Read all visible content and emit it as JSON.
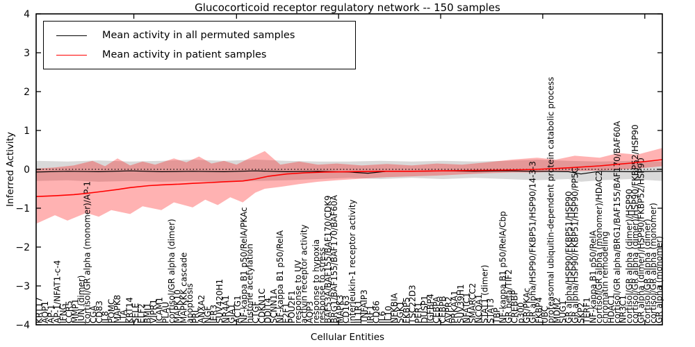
{
  "title": "Glucocorticoid receptor regulatory network -- 150 samples",
  "axes": {
    "ylabel": "Inferred Activity",
    "xlabel": "Cellular Entities",
    "ylim": [
      -4,
      4
    ],
    "yticks": [
      -4,
      -3,
      -2,
      -1,
      0,
      1,
      2,
      3,
      4
    ]
  },
  "legend": {
    "items": [
      {
        "label": "Mean activity in all permuted samples",
        "color": "#000000"
      },
      {
        "label": "Mean activity in patient samples",
        "color": "#ff0000"
      }
    ]
  },
  "chart_data": {
    "type": "line",
    "title": "Glucocorticoid receptor regulatory network -- 150 samples",
    "xlabel": "Cellular Entities",
    "ylabel": "Inferred Activity",
    "ylim": [
      -4,
      4
    ],
    "grid": false,
    "legend_position": "upper left",
    "zero_line": true,
    "x_categories": [
      "KRT17",
      "AQP1",
      "AP-1",
      "AP-1/NFAT1-c-4",
      "IFNG",
      "CCR5",
      "MMP1",
      "JUN (dimer)",
      "cortisol/GR alpha (monomer)/AP-1",
      "CGA",
      "CD83",
      "IL8",
      "POMC",
      "MAPK8",
      "LTA",
      "KRT14",
      "SELE",
      "ELF2",
      "BMI1",
      "VIPR1",
      "ICAM1",
      "PLAU",
      "cortisol/GR alpha (dimer)",
      "MAPK10",
      "MAPKKK cascade",
      "apoptosis",
      "PRL",
      "ANXA2",
      "NGF",
      "IER3",
      "SUV420H1",
      "NR4A1",
      "GJA1",
      "ACTG1",
      "NF-kappa B1 p50/RelA/PKAc",
      "histone acetylation",
      "CTGF",
      "CDKN1C",
      "DDIT4",
      "SCNN1A",
      "NF-kappa B1 p50/RelA",
      "E2F1",
      "POU2F1",
      "response to UV",
      "activin receptor activity",
      "AQP3",
      "response to hypoxia",
      "response to stress",
      "BAF53A/BAF155/BAF170/CDK9",
      "BRG1/BAF155/BAF170/BAF60A",
      "MAPK3",
      "CD163",
      "interleukin-1 receptor activity",
      "IL1R1",
      "TNFAIP3",
      "IRF1",
      "CD86",
      "IL6",
      "IL10",
      "NFKBIA",
      "SGK1",
      "FKBP5",
      "TSC22D3",
      "PER1",
      "DUSP1",
      "IGFBP4",
      "CEBPA",
      "CEBPB",
      "AVPR2",
      "PRKAA1",
      "SUV39H1",
      "NFATC1",
      "SMARCC2",
      "NCOA1",
      "STAT1 (dimer)",
      "STAT3",
      "TBP",
      "NF-kappa B1 p50/RelA/Cbp",
      "GR beta/TIF2",
      "CREBBP",
      "p300",
      "GR/PKAc",
      "GR alpha/HSP90/FKBP51/HSP90/14-3-3",
      "FKBP4",
      "UBC",
      "proteasomal ubiquitin-dependent protein catabolic process",
      "MDM2",
      "SUG1",
      "GR alpha/HSP90/FKBP51/HSP90",
      "GR alpha/HSP90/FKBP51/HSP90/PP5C",
      "SKP2",
      "TERF1",
      "NF-kappa B1 p50/RelA",
      "cortisol/GR alpha (monomer)/HDAC2",
      "chromatin remodeling",
      "HDAC1",
      "cortisol/GR alpha/BRG1/BAF155/BAF170/BAF60A",
      "NR3C1",
      "cortisol/GR alpha (dimer)/HSP90",
      "cortisol/GR alpha (dimer)/HSP90/FKBP52/HSP90",
      "GR alpha (dimer)/HSP90/FKBP52/HSP90",
      "cortisol/GR alpha (dimer)",
      "cortisol/GR alpha (monomer)",
      "GR alpha (monomer)"
    ],
    "series": [
      {
        "name": "Mean activity in all permuted samples",
        "color": "#000000",
        "line_width": 1.2,
        "mean": [
          [
            0,
            -0.07
          ],
          [
            0.05,
            -0.05
          ],
          [
            0.1,
            -0.06
          ],
          [
            0.15,
            -0.04
          ],
          [
            0.2,
            -0.06
          ],
          [
            0.25,
            -0.05
          ],
          [
            0.3,
            -0.06
          ],
          [
            0.35,
            -0.04
          ],
          [
            0.4,
            -0.06
          ],
          [
            0.45,
            -0.05
          ],
          [
            0.5,
            -0.07
          ],
          [
            0.53,
            -0.1
          ],
          [
            0.56,
            -0.05
          ],
          [
            0.6,
            -0.05
          ],
          [
            0.65,
            -0.04
          ],
          [
            0.7,
            -0.05
          ],
          [
            0.75,
            -0.04
          ],
          [
            0.8,
            -0.05
          ],
          [
            0.85,
            -0.06
          ],
          [
            0.87,
            -0.12
          ],
          [
            0.9,
            -0.05
          ],
          [
            0.95,
            -0.06
          ],
          [
            1,
            -0.05
          ]
        ],
        "band": {
          "fill": "#aaaaaa",
          "opacity": 0.45,
          "upper": [
            [
              0,
              0.22
            ],
            [
              0.05,
              0.2
            ],
            [
              0.1,
              0.23
            ],
            [
              0.15,
              0.2
            ],
            [
              0.2,
              0.22
            ],
            [
              0.25,
              0.25
            ],
            [
              0.3,
              0.22
            ],
            [
              0.35,
              0.25
            ],
            [
              0.4,
              0.22
            ],
            [
              0.45,
              0.2
            ],
            [
              0.5,
              0.2
            ],
            [
              0.55,
              0.22
            ],
            [
              0.6,
              0.2
            ],
            [
              0.65,
              0.22
            ],
            [
              0.7,
              0.2
            ],
            [
              0.75,
              0.22
            ],
            [
              0.8,
              0.25
            ],
            [
              0.85,
              0.22
            ],
            [
              0.9,
              0.2
            ],
            [
              0.95,
              0.22
            ],
            [
              1,
              0.2
            ]
          ],
          "lower": [
            [
              0,
              -0.3
            ],
            [
              0.05,
              -0.28
            ],
            [
              0.1,
              -0.32
            ],
            [
              0.15,
              -0.3
            ],
            [
              0.2,
              -0.32
            ],
            [
              0.25,
              -0.3
            ],
            [
              0.3,
              -0.33
            ],
            [
              0.35,
              -0.3
            ],
            [
              0.4,
              -0.28
            ],
            [
              0.45,
              -0.25
            ],
            [
              0.5,
              -0.22
            ],
            [
              0.55,
              -0.25
            ],
            [
              0.6,
              -0.22
            ],
            [
              0.65,
              -0.25
            ],
            [
              0.7,
              -0.22
            ],
            [
              0.75,
              -0.25
            ],
            [
              0.8,
              -0.28
            ],
            [
              0.85,
              -0.25
            ],
            [
              0.87,
              -0.32
            ],
            [
              0.9,
              -0.28
            ],
            [
              0.95,
              -0.25
            ],
            [
              1,
              -0.3
            ]
          ]
        }
      },
      {
        "name": "Mean activity in patient samples",
        "color": "#ff0000",
        "line_width": 1.6,
        "mean": [
          [
            0,
            -0.7
          ],
          [
            0.03,
            -0.68
          ],
          [
            0.06,
            -0.65
          ],
          [
            0.08,
            -0.62
          ],
          [
            0.1,
            -0.58
          ],
          [
            0.13,
            -0.52
          ],
          [
            0.15,
            -0.47
          ],
          [
            0.18,
            -0.42
          ],
          [
            0.2,
            -0.4
          ],
          [
            0.23,
            -0.38
          ],
          [
            0.25,
            -0.36
          ],
          [
            0.28,
            -0.34
          ],
          [
            0.3,
            -0.32
          ],
          [
            0.33,
            -0.3
          ],
          [
            0.35,
            -0.25
          ],
          [
            0.37,
            -0.18
          ],
          [
            0.4,
            -0.12
          ],
          [
            0.43,
            -0.09
          ],
          [
            0.46,
            -0.07
          ],
          [
            0.5,
            -0.06
          ],
          [
            0.55,
            -0.05
          ],
          [
            0.6,
            -0.05
          ],
          [
            0.65,
            -0.04
          ],
          [
            0.7,
            -0.03
          ],
          [
            0.75,
            -0.02
          ],
          [
            0.8,
            0.0
          ],
          [
            0.85,
            0.04
          ],
          [
            0.9,
            0.09
          ],
          [
            0.95,
            0.16
          ],
          [
            1,
            0.25
          ]
        ],
        "band": {
          "fill": "#ff0000",
          "opacity": 0.3,
          "upper": [
            [
              0,
              0.02
            ],
            [
              0.03,
              0.05
            ],
            [
              0.06,
              0.1
            ],
            [
              0.09,
              0.22
            ],
            [
              0.11,
              0.08
            ],
            [
              0.13,
              0.28
            ],
            [
              0.15,
              0.1
            ],
            [
              0.17,
              0.2
            ],
            [
              0.19,
              0.12
            ],
            [
              0.22,
              0.28
            ],
            [
              0.24,
              0.18
            ],
            [
              0.26,
              0.33
            ],
            [
              0.28,
              0.15
            ],
            [
              0.3,
              0.22
            ],
            [
              0.32,
              0.12
            ],
            [
              0.34,
              0.28
            ],
            [
              0.365,
              0.47
            ],
            [
              0.39,
              0.12
            ],
            [
              0.42,
              0.2
            ],
            [
              0.45,
              0.12
            ],
            [
              0.48,
              0.15
            ],
            [
              0.52,
              0.1
            ],
            [
              0.56,
              0.14
            ],
            [
              0.6,
              0.1
            ],
            [
              0.64,
              0.15
            ],
            [
              0.68,
              0.12
            ],
            [
              0.72,
              0.18
            ],
            [
              0.76,
              0.25
            ],
            [
              0.8,
              0.3
            ],
            [
              0.83,
              0.25
            ],
            [
              0.86,
              0.35
            ],
            [
              0.9,
              0.3
            ],
            [
              0.93,
              0.42
            ],
            [
              0.96,
              0.38
            ],
            [
              1,
              0.55
            ]
          ],
          "lower": [
            [
              0,
              -1.4
            ],
            [
              0.03,
              -1.18
            ],
            [
              0.05,
              -1.32
            ],
            [
              0.08,
              -1.12
            ],
            [
              0.1,
              -1.22
            ],
            [
              0.12,
              -1.05
            ],
            [
              0.15,
              -1.15
            ],
            [
              0.17,
              -0.95
            ],
            [
              0.2,
              -1.05
            ],
            [
              0.22,
              -0.85
            ],
            [
              0.25,
              -0.98
            ],
            [
              0.27,
              -0.78
            ],
            [
              0.29,
              -0.92
            ],
            [
              0.31,
              -0.72
            ],
            [
              0.33,
              -0.85
            ],
            [
              0.35,
              -0.6
            ],
            [
              0.365,
              -0.5
            ],
            [
              0.39,
              -0.45
            ],
            [
              0.42,
              -0.38
            ],
            [
              0.45,
              -0.32
            ],
            [
              0.48,
              -0.28
            ],
            [
              0.52,
              -0.24
            ],
            [
              0.56,
              -0.2
            ],
            [
              0.6,
              -0.18
            ],
            [
              0.64,
              -0.16
            ],
            [
              0.68,
              -0.13
            ],
            [
              0.72,
              -0.1
            ],
            [
              0.76,
              -0.08
            ],
            [
              0.8,
              -0.08
            ],
            [
              0.84,
              -0.05
            ],
            [
              0.88,
              -0.04
            ],
            [
              0.92,
              -0.02
            ],
            [
              0.96,
              0.02
            ],
            [
              1,
              0.08
            ]
          ]
        }
      }
    ]
  }
}
